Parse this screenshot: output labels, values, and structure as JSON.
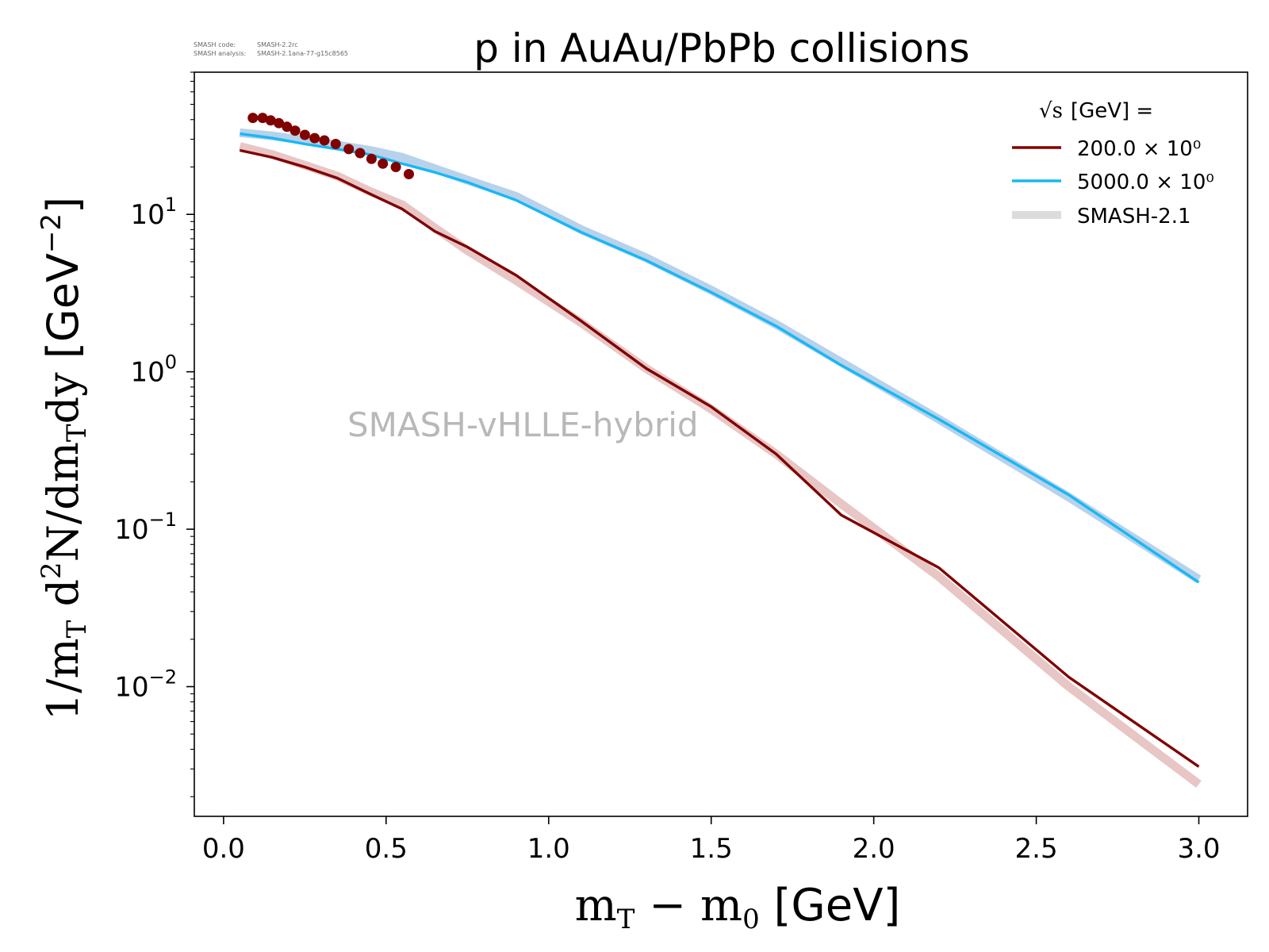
{
  "meta": {
    "code_label": "SMASH code:",
    "code_value": "SMASH-2.2rc",
    "analysis_label": "SMASH analysis:",
    "analysis_value": "SMASH-2.1ana-77-g15c8565"
  },
  "watermark": "SMASH-vHLLE-hybrid",
  "legend": {
    "title_symbol": "√s",
    "title_rest": "[GeV] =",
    "placement": "top-right",
    "entries": [
      {
        "label": "200.0 × 10⁰",
        "color": "#800000"
      },
      {
        "label": "5000.0 × 10⁰",
        "color": "#17b8f5"
      },
      {
        "label": "SMASH-2.1",
        "color": "#dcdcdc"
      }
    ]
  },
  "chart_data": {
    "type": "line",
    "title": "p in AuAu/PbPb collisions",
    "xlabel": "mT − m0 [GeV]",
    "ylabel": "1/mT d²N/dmTdy [GeV⁻²]",
    "xlim": [
      -0.09,
      3.15
    ],
    "ylim": [
      0.0015,
      80
    ],
    "yscale": "log",
    "grid": false,
    "x_ticks": [
      {
        "value": 0.0,
        "label": "0.0"
      },
      {
        "value": 0.5,
        "label": "0.5"
      },
      {
        "value": 1.0,
        "label": "1.0"
      },
      {
        "value": 1.5,
        "label": "1.5"
      },
      {
        "value": 2.0,
        "label": "2.0"
      },
      {
        "value": 2.5,
        "label": "2.5"
      },
      {
        "value": 3.0,
        "label": "3.0"
      }
    ],
    "y_ticks": [
      {
        "value": 0.01,
        "base": "10",
        "exp": "−2"
      },
      {
        "value": 0.1,
        "base": "10",
        "exp": "−1"
      },
      {
        "value": 1,
        "base": "10",
        "exp": "0"
      },
      {
        "value": 10,
        "base": "10",
        "exp": "1"
      }
    ],
    "series": [
      {
        "name": "200.0 × 10⁰",
        "kind": "line",
        "color": "#800000",
        "x": [
          0.05,
          0.15,
          0.25,
          0.35,
          0.45,
          0.55,
          0.65,
          0.75,
          0.9,
          1.1,
          1.3,
          1.5,
          1.7,
          1.9,
          2.2,
          2.6,
          3.0
        ],
        "y": [
          25.5,
          23,
          20,
          17,
          13.5,
          10.8,
          7.8,
          6.2,
          4.1,
          2.1,
          1.05,
          0.6,
          0.3,
          0.123,
          0.057,
          0.0115,
          0.0031
        ]
      },
      {
        "name": "5000.0 × 10⁰",
        "kind": "line",
        "color": "#17b8f5",
        "x": [
          0.05,
          0.15,
          0.25,
          0.35,
          0.45,
          0.55,
          0.65,
          0.75,
          0.9,
          1.1,
          1.3,
          1.5,
          1.7,
          1.9,
          2.2,
          2.6,
          3.0
        ],
        "y": [
          32.5,
          30.5,
          28,
          26,
          24,
          21,
          18.5,
          16,
          12.3,
          7.7,
          5.1,
          3.2,
          1.95,
          1.1,
          0.5,
          0.165,
          0.046
        ]
      },
      {
        "name": "SMASH-2.1 (200)",
        "kind": "band",
        "color": "#e8c6c6",
        "x": [
          0.05,
          0.15,
          0.25,
          0.35,
          0.45,
          0.55,
          0.65,
          0.75,
          0.9,
          1.1,
          1.3,
          1.5,
          1.7,
          1.9,
          2.2,
          2.6,
          3.0
        ],
        "y": [
          27,
          24,
          20.5,
          17.5,
          14,
          11.5,
          8.2,
          5.9,
          3.8,
          2.05,
          1.05,
          0.58,
          0.3,
          0.145,
          0.05,
          0.01,
          0.0024
        ]
      },
      {
        "name": "SMASH-2.1 (5000)",
        "kind": "band",
        "color": "#b7d2ea",
        "x": [
          0.05,
          0.15,
          0.25,
          0.35,
          0.45,
          0.55,
          0.65,
          0.75,
          0.9,
          1.1,
          1.3,
          1.5,
          1.7,
          1.9,
          2.2,
          2.6,
          3.0
        ],
        "y": [
          33,
          31.5,
          29.5,
          27.5,
          25.5,
          23,
          19.5,
          16.5,
          13,
          8,
          5.3,
          3.3,
          2.0,
          1.15,
          0.5,
          0.16,
          0.048
        ]
      },
      {
        "name": "data 200",
        "kind": "scatter",
        "color": "#800000",
        "x": [
          0.09,
          0.12,
          0.145,
          0.17,
          0.195,
          0.22,
          0.25,
          0.28,
          0.31,
          0.345,
          0.385,
          0.42,
          0.455,
          0.49,
          0.53,
          0.57
        ],
        "y": [
          41,
          41,
          39.5,
          38,
          36,
          34,
          32,
          30.5,
          29.5,
          28,
          26,
          24.5,
          22.5,
          21,
          20,
          18
        ]
      }
    ]
  }
}
